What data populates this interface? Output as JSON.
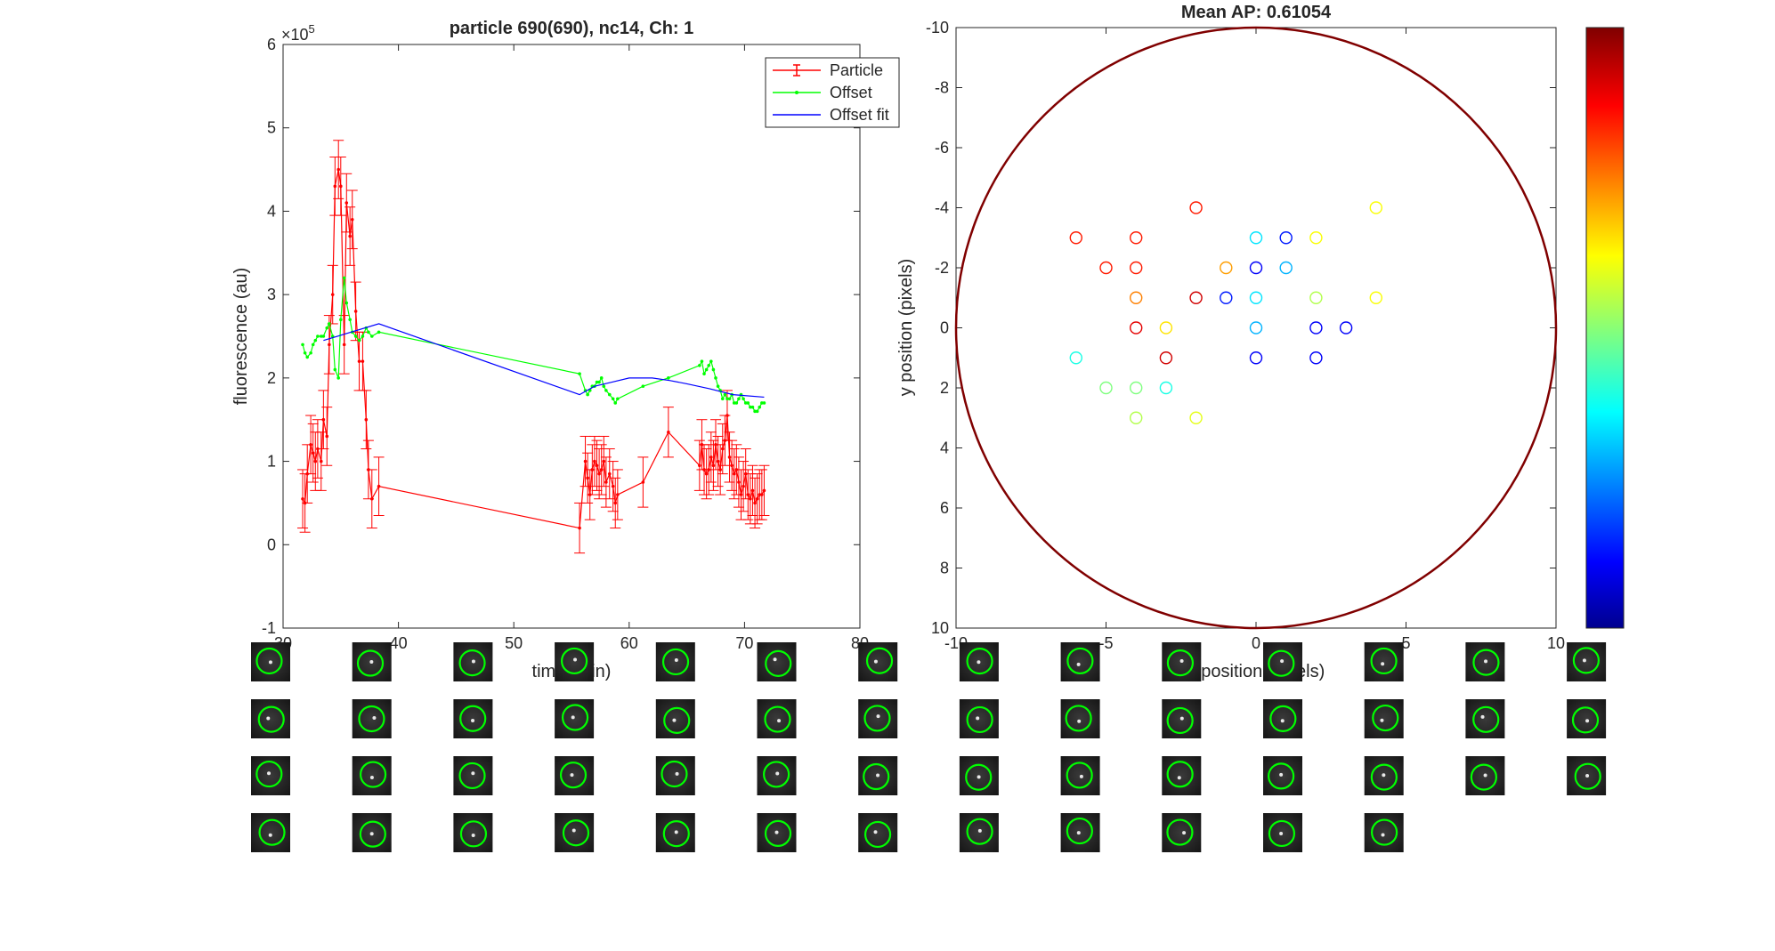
{
  "colors": {
    "particle": "#ff0000",
    "offset": "#00ff00",
    "offset_fit": "#0000ff",
    "ap_circle": "#800000",
    "thumb_circle": "#00ff00"
  },
  "chart_data": [
    {
      "type": "line",
      "title": "particle 690(690), nc14, Ch: 1",
      "xlabel": "time (min)",
      "ylabel": "fluorescence (au)",
      "exponent_label": "×10",
      "exponent_power": "5",
      "xlim": [
        30,
        80
      ],
      "ylim": [
        -1,
        6
      ],
      "xticks": [
        30,
        40,
        50,
        60,
        70,
        80
      ],
      "yticks": [
        -1,
        0,
        1,
        2,
        3,
        4,
        5,
        6
      ],
      "legend": {
        "position": "top-right",
        "entries": [
          "Particle",
          "Offset",
          "Offset fit"
        ]
      },
      "series": [
        {
          "name": "Particle",
          "style": "errorbar",
          "x": [
            31.7,
            31.9,
            32.1,
            32.4,
            32.6,
            32.8,
            33.0,
            33.3,
            33.5,
            33.8,
            34.0,
            34.3,
            34.5,
            34.8,
            35.0,
            35.3,
            35.5,
            35.8,
            36.0,
            36.3,
            36.6,
            36.9,
            37.2,
            37.4,
            37.7,
            38.3,
            55.7,
            56.2,
            56.4,
            56.6,
            56.8,
            57.0,
            57.2,
            57.4,
            57.6,
            57.8,
            58.0,
            58.3,
            58.6,
            58.8,
            59.0,
            61.2,
            63.4,
            66.1,
            66.3,
            66.5,
            66.7,
            66.9,
            67.1,
            67.3,
            67.5,
            67.7,
            67.9,
            68.1,
            68.3,
            68.5,
            68.7,
            68.9,
            69.1,
            69.3,
            69.5,
            69.7,
            69.9,
            70.1,
            70.3,
            70.5,
            70.7,
            70.9,
            71.1,
            71.3,
            71.5,
            71.7
          ],
          "values": [
            0.55,
            0.5,
            0.85,
            1.2,
            1.1,
            1.0,
            1.15,
            1.0,
            1.5,
            1.3,
            2.4,
            3.0,
            4.3,
            4.5,
            4.3,
            2.4,
            4.1,
            3.7,
            3.9,
            2.8,
            2.2,
            2.2,
            1.5,
            0.9,
            0.55,
            0.7,
            0.2,
            1.0,
            0.8,
            0.6,
            0.9,
            1.0,
            0.95,
            0.85,
            0.9,
            1.0,
            0.75,
            0.85,
            0.7,
            0.5,
            0.6,
            0.75,
            1.35,
            0.95,
            1.2,
            0.9,
            0.85,
            0.9,
            1.05,
            0.95,
            1.2,
            1.0,
            0.9,
            1.15,
            1.25,
            1.55,
            1.05,
            0.95,
            0.85,
            0.9,
            0.75,
            0.6,
            0.7,
            0.85,
            0.6,
            0.55,
            0.65,
            0.5,
            0.55,
            0.6,
            0.6,
            0.65
          ],
          "error": [
            0.35,
            0.35,
            0.35,
            0.35,
            0.35,
            0.35,
            0.35,
            0.35,
            0.35,
            0.35,
            0.35,
            0.35,
            0.35,
            0.35,
            0.35,
            0.35,
            0.35,
            0.35,
            0.35,
            0.35,
            0.35,
            0.35,
            0.35,
            0.35,
            0.35,
            0.35,
            0.3,
            0.3,
            0.3,
            0.3,
            0.3,
            0.3,
            0.3,
            0.3,
            0.3,
            0.3,
            0.3,
            0.3,
            0.3,
            0.3,
            0.3,
            0.3,
            0.3,
            0.3,
            0.3,
            0.3,
            0.3,
            0.3,
            0.3,
            0.3,
            0.3,
            0.3,
            0.3,
            0.3,
            0.3,
            0.3,
            0.3,
            0.3,
            0.3,
            0.3,
            0.3,
            0.3,
            0.3,
            0.3,
            0.3,
            0.3,
            0.3,
            0.3,
            0.3,
            0.3,
            0.3,
            0.3
          ]
        },
        {
          "name": "Offset",
          "style": "line-dot",
          "x": [
            31.7,
            31.9,
            32.1,
            32.4,
            32.6,
            32.8,
            33.0,
            33.3,
            33.5,
            33.8,
            34.0,
            34.3,
            34.5,
            34.8,
            35.0,
            35.3,
            35.5,
            35.8,
            36.0,
            36.3,
            36.6,
            36.9,
            37.2,
            37.4,
            37.7,
            38.3,
            55.7,
            56.2,
            56.4,
            56.6,
            56.8,
            57.0,
            57.2,
            57.4,
            57.6,
            57.8,
            58.0,
            58.3,
            58.6,
            58.8,
            59.0,
            61.2,
            63.4,
            66.1,
            66.3,
            66.5,
            66.7,
            66.9,
            67.1,
            67.3,
            67.5,
            67.7,
            67.9,
            68.1,
            68.3,
            68.5,
            68.7,
            68.9,
            69.1,
            69.3,
            69.5,
            69.7,
            69.9,
            70.1,
            70.3,
            70.5,
            70.7,
            70.9,
            71.1,
            71.3,
            71.5,
            71.7
          ],
          "values": [
            2.4,
            2.3,
            2.25,
            2.3,
            2.4,
            2.45,
            2.5,
            2.5,
            2.5,
            2.6,
            2.65,
            2.5,
            2.1,
            2.0,
            2.7,
            3.2,
            2.9,
            2.7,
            2.55,
            2.5,
            2.45,
            2.5,
            2.6,
            2.55,
            2.5,
            2.55,
            2.05,
            1.85,
            1.8,
            1.85,
            1.9,
            1.9,
            1.95,
            1.95,
            2.0,
            1.9,
            1.85,
            1.8,
            1.75,
            1.7,
            1.75,
            1.9,
            2.0,
            2.15,
            2.2,
            2.05,
            2.1,
            2.15,
            2.2,
            2.1,
            2.0,
            1.9,
            1.85,
            1.75,
            1.8,
            1.75,
            1.75,
            1.8,
            1.7,
            1.7,
            1.75,
            1.8,
            1.75,
            1.7,
            1.7,
            1.65,
            1.65,
            1.6,
            1.6,
            1.65,
            1.7,
            1.7
          ]
        },
        {
          "name": "Offset fit",
          "style": "line",
          "x": [
            33.5,
            38.3,
            55.7,
            57.0,
            58.5,
            60.0,
            61.0,
            62.0,
            63.5,
            65.0,
            67.0,
            69.0,
            71.7
          ],
          "values": [
            2.45,
            2.65,
            1.8,
            1.9,
            1.95,
            2.0,
            2.0,
            2.0,
            1.97,
            1.93,
            1.87,
            1.8,
            1.77
          ]
        }
      ]
    },
    {
      "type": "scatter",
      "title": "Mean AP: 0.61054",
      "xlabel": "x position (pixels)",
      "ylabel": "y position (pixels)",
      "xlim": [
        -10,
        10
      ],
      "ylim": [
        -10,
        10
      ],
      "y_reversed": true,
      "xticks": [
        -10,
        -5,
        0,
        5,
        10
      ],
      "yticks": [
        -10,
        -8,
        -6,
        -4,
        -2,
        0,
        2,
        4,
        6,
        8,
        10
      ],
      "boundary_circle": {
        "cx": 0,
        "cy": 0,
        "r": 10
      },
      "colorbar": "jet",
      "points": [
        {
          "x": -6,
          "y": -3,
          "c": 0.85
        },
        {
          "x": -4,
          "y": -3,
          "c": 0.85
        },
        {
          "x": -5,
          "y": -2,
          "c": 0.85
        },
        {
          "x": -4,
          "y": -2,
          "c": 0.85
        },
        {
          "x": -4,
          "y": -1,
          "c": 0.75
        },
        {
          "x": -4,
          "y": 0,
          "c": 0.9
        },
        {
          "x": -3,
          "y": 0,
          "c": 0.65
        },
        {
          "x": -3,
          "y": 1,
          "c": 0.92
        },
        {
          "x": -6,
          "y": 1,
          "c": 0.4
        },
        {
          "x": -5,
          "y": 2,
          "c": 0.5
        },
        {
          "x": -4,
          "y": 2,
          "c": 0.5
        },
        {
          "x": -3,
          "y": 2,
          "c": 0.4
        },
        {
          "x": -4,
          "y": 3,
          "c": 0.55
        },
        {
          "x": -2,
          "y": 3,
          "c": 0.6
        },
        {
          "x": -2,
          "y": -4,
          "c": 0.85
        },
        {
          "x": -2,
          "y": -1,
          "c": 0.92
        },
        {
          "x": -1,
          "y": -2,
          "c": 0.72
        },
        {
          "x": -1,
          "y": -1,
          "c": 0.15
        },
        {
          "x": 0,
          "y": -3,
          "c": 0.35
        },
        {
          "x": 1,
          "y": -3,
          "c": 0.15
        },
        {
          "x": 2,
          "y": -3,
          "c": 0.62
        },
        {
          "x": 0,
          "y": -2,
          "c": 0.12
        },
        {
          "x": 1,
          "y": -2,
          "c": 0.3
        },
        {
          "x": 0,
          "y": -1,
          "c": 0.35
        },
        {
          "x": 2,
          "y": -1,
          "c": 0.55
        },
        {
          "x": 0,
          "y": 0,
          "c": 0.3
        },
        {
          "x": 2,
          "y": 0,
          "c": 0.12
        },
        {
          "x": 3,
          "y": 0,
          "c": 0.12
        },
        {
          "x": 0,
          "y": 1,
          "c": 0.12
        },
        {
          "x": 2,
          "y": 1,
          "c": 0.12
        },
        {
          "x": 4,
          "y": -4,
          "c": 0.62
        },
        {
          "x": 4,
          "y": -1,
          "c": 0.62
        }
      ]
    }
  ],
  "thumbnails": {
    "count": 54,
    "columns": 14
  }
}
